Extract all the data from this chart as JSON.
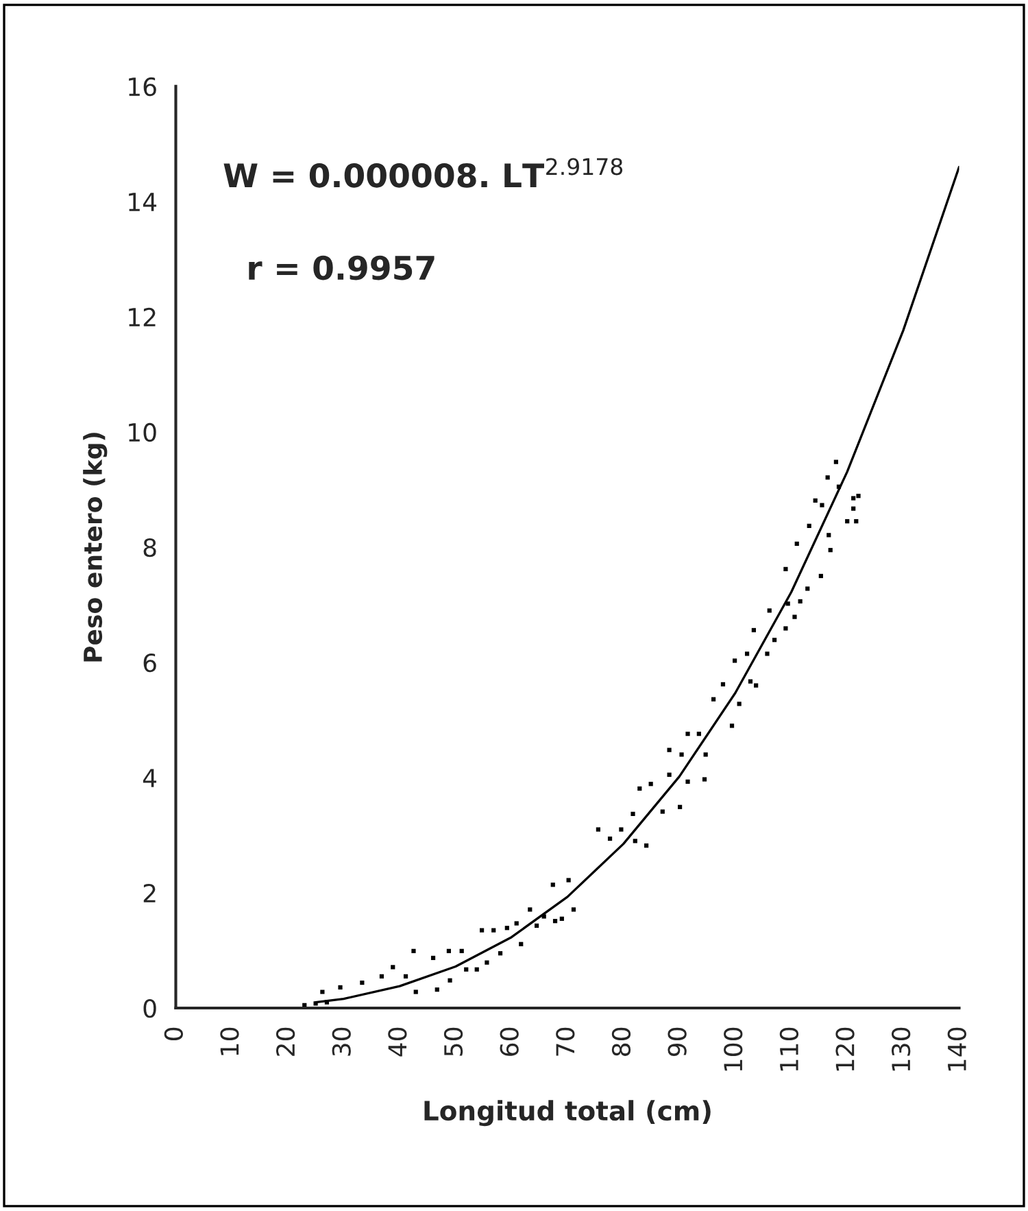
{
  "chart_data": {
    "type": "scatter",
    "xlabel": "Longitud total (cm)",
    "ylabel": "Peso entero (kg)",
    "annotations": [
      "W = 0.000008. LT$^{2.9178}$",
      "r = 0.9957"
    ],
    "xlim": [
      0,
      140
    ],
    "ylim": [
      0,
      16
    ],
    "xticks": [
      0,
      10,
      20,
      30,
      40,
      50,
      60,
      70,
      80,
      90,
      100,
      110,
      120,
      130,
      140
    ],
    "yticks": [
      0,
      2,
      4,
      6,
      8,
      10,
      12,
      14,
      16
    ],
    "grid": false,
    "legend": false,
    "series": [
      {
        "color": "#000000",
        "marker": "square",
        "x": [
          23,
          25,
          27,
          26.2,
          29.4,
          33.3,
          36.8,
          38.8,
          41.1,
          42.5,
          42.9,
          46.0,
          46.7,
          48.8,
          49.0,
          51.1,
          51.9,
          53.8,
          54.7,
          55.6,
          56.8,
          58.0,
          59.2,
          60.9,
          61.7,
          63.3,
          64.5,
          65.8,
          67.4,
          67.8,
          69.0,
          70.2,
          71.1,
          75.5,
          77.6,
          79.6,
          81.7,
          82.1,
          84.1,
          82.9,
          84.9,
          87.0,
          88.2,
          88.2,
          90.1,
          90.4,
          91.5,
          91.5,
          93.5,
          94.5,
          94.7,
          96.1,
          97.8,
          99.4,
          99.9,
          100.7,
          102.1,
          102.7,
          103.3,
          103.7,
          105.7,
          106.1,
          107.0,
          109.0,
          109.0,
          109.4,
          110.6,
          111.0,
          111.6,
          112.9,
          113.2,
          114.3,
          115.3,
          115.5,
          116.5,
          117.0,
          116.7,
          118.5,
          120.0,
          121.1,
          121.1,
          122.0,
          121.6,
          118.0
        ],
        "values": [
          0.05,
          0.08,
          0.1,
          0.28,
          0.36,
          0.44,
          0.55,
          0.71,
          0.55,
          0.99,
          0.28,
          0.87,
          0.32,
          0.99,
          0.48,
          0.99,
          0.67,
          0.67,
          1.35,
          0.79,
          1.35,
          0.95,
          1.39,
          1.47,
          1.11,
          1.71,
          1.43,
          1.59,
          2.14,
          1.51,
          1.55,
          2.22,
          1.71,
          3.1,
          2.94,
          3.1,
          3.37,
          2.9,
          2.82,
          3.81,
          3.89,
          3.41,
          4.05,
          4.48,
          3.49,
          4.4,
          4.76,
          3.93,
          4.76,
          3.97,
          4.4,
          5.36,
          5.62,
          4.9,
          6.03,
          5.28,
          6.15,
          5.67,
          6.56,
          5.6,
          6.15,
          6.9,
          6.39,
          6.59,
          7.62,
          7.02,
          6.79,
          8.06,
          7.06,
          7.28,
          8.37,
          8.81,
          7.5,
          8.73,
          9.21,
          7.95,
          8.21,
          9.05,
          8.45,
          8.67,
          8.85,
          8.89,
          8.45,
          9.48
        ]
      },
      {
        "type": "line",
        "color": "#000000",
        "line_style": "solid",
        "x": [
          25,
          30,
          40,
          50,
          60,
          70,
          80,
          90,
          100,
          110,
          120,
          130,
          140
        ],
        "values": [
          0.1,
          0.16,
          0.38,
          0.72,
          1.23,
          1.93,
          2.85,
          4.02,
          5.47,
          7.22,
          9.31,
          11.76,
          14.6
        ]
      }
    ]
  }
}
